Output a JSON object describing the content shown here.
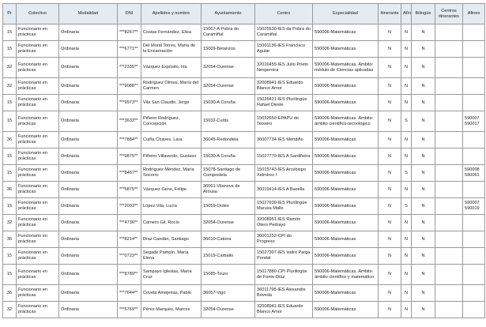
{
  "headers": [
    "Pr",
    "Colectivo",
    "Modalidad",
    "DNI",
    "Apellidos y nombre",
    "Ayuntamiento",
    "Centro",
    "Especialidad",
    "Itinerante",
    "Afín",
    "Bilingüe",
    "Centros itinerantes",
    "Afines"
  ],
  "rows": [
    [
      "15",
      "Funcionario en prácticas",
      "Ordinaria",
      "***8267**",
      "Costas Fernández, Elisa",
      "15067-A Pobra do Caramiñal",
      "15025530-IES da Pobra do Caramiñal",
      "590006-Matemáticas",
      "N",
      "N",
      "N",
      "",
      ""
    ],
    [
      "15",
      "Funcionario en prácticas",
      "Ordinaria",
      "***6771**",
      "Del Moral Torres, María de la Encarnación",
      "15009-Betanzos",
      "15001136-IES Francisco Aguiar",
      "590006-Matemáticas",
      "N",
      "N",
      "N",
      "",
      ""
    ],
    [
      "32",
      "Funcionario en prácticas",
      "Ordinaria",
      "***2335**",
      "Vázquez Expósito, Iria",
      "32054-Ourense",
      "32016455-IES Julio Prieto Nespereira",
      "590006-Matemáticas. Ámbito: módulo de Ciencias aplicadas",
      "N",
      "N",
      "N",
      "",
      ""
    ],
    [
      "32",
      "Funcionario en prácticas",
      "Ordinaria",
      "***9088**",
      "Rodríguez Olmos, María del Carmen",
      "32054-Ourense",
      "32008941-IES Eduardo Blanco Amor",
      "590006-Matemáticas",
      "N",
      "N",
      "N",
      "",
      ""
    ],
    [
      "15",
      "Funcionario en prácticas",
      "Ordinaria",
      "***9973**",
      "Vila San Claudio, Jorge",
      "15030-A Coruña",
      "15026421-IES Plurilingüe Rafael Dieste",
      "590006-Matemáticas",
      "N",
      "N",
      "N",
      "",
      ""
    ],
    [
      "15",
      "Funcionario en prácticas",
      "Ordinaria",
      "***3633**",
      "Piñeiro Rodríguez, Concepción",
      "15032-Curtis",
      "15032650-EPAPU de Teixeiro",
      "590006-Matemáticas. Ámbito: ámbito científico-tecnológico",
      "N",
      "S",
      "N",
      "",
      "590007 590017"
    ],
    [
      "36",
      "Funcionario en prácticas",
      "Ordinaria",
      "***7884**",
      "Cuiña Chaves, Lara",
      "36045-Redondela",
      "36007734-IES Mendiño",
      "590006-Matemáticas",
      "N",
      "N",
      "N",
      "",
      ""
    ],
    [
      "15",
      "Funcionario en prácticas",
      "Ordinaria",
      "***9875**",
      "Piñeiro Villaverde, Gustavo",
      "15030-A Coruña",
      "15027770-IES A Sardiñeira",
      "590006-Matemáticas",
      "N",
      "N",
      "N",
      "",
      ""
    ],
    [
      "15",
      "Funcionario en prácticas",
      "Ordinaria",
      "***8467**",
      "Rodríguez Méndez, María Socorro",
      "15078-Santiago de Compostela",
      "15015743-IES Arcebispo Xelmírez I",
      "590006-Matemáticas",
      "N",
      "S",
      "N",
      "",
      "590008 590061"
    ],
    [
      "36",
      "Funcionario en prácticas",
      "Ordinaria",
      "***5875**",
      "Vázquez Gens, Felipe",
      "36061-Vilanova de Arousa",
      "36019414-IES A Basella",
      "590006-Matemáticas",
      "N",
      "N",
      "N",
      "",
      ""
    ],
    [
      "15",
      "Funcionario en prácticas",
      "Ordinaria",
      "***2093**",
      "López Vila, Lucía",
      "15059-Ordes",
      "15027939-IES Plurilingüe Maruxa Mallo",
      "590006-Matemáticas",
      "N",
      "S",
      "N",
      "",
      "590007 590019"
    ],
    [
      "32",
      "Funcionario en prácticas",
      "Ordinaria",
      "***4736**",
      "Camero Gil, Rocío",
      "32054-Ourense",
      "32008951-IES Ramón Otero Pedrayo",
      "590006-Matemáticas",
      "N",
      "N",
      "N",
      "",
      ""
    ],
    [
      "36",
      "Funcionario en prácticas",
      "Ordinaria",
      "***8214**",
      "Díaz Candán, Santiago",
      "36010-Catoira",
      "36001252-CPI do Progreso",
      "590006-Matemáticas",
      "N",
      "N",
      "N",
      "",
      ""
    ],
    [
      "15",
      "Funcionario en prácticas",
      "Ordinaria",
      "***0723**",
      "Segade Pampín, María Elena",
      "15019-Carballo",
      "15027307-IES Isidro Parga Pondal",
      "590006-Matemáticas",
      "N",
      "N",
      "N",
      "",
      ""
    ],
    [
      "15",
      "Funcionario en prácticas",
      "Ordinaria",
      "***8789**",
      "Sampayo Iglesias, María Cruz",
      "15085-Touro",
      "15017880-CPI Plurilingüe de Fonte-Díaz",
      "590006-Matemáticas. Ámbito: ámbito científico y matemático",
      "N",
      "N",
      "N",
      "",
      ""
    ],
    [
      "36",
      "Funcionario en prácticas",
      "Ordinaria",
      "***7644**",
      "Covela Amejeiras, Pablo",
      "36057-Vigo",
      "36011798-IES Alexandre Bóveda",
      "590006-Matemáticas",
      "N",
      "N",
      "N",
      "",
      ""
    ],
    [
      "32",
      "Funcionario en prácticas",
      "Ordinaria",
      "***5769**",
      "Pérez Marqués, Marcos",
      "32054-Ourense",
      "32008941-IES Eduardo Blanco Amor",
      "590006-Matemáticas",
      "N",
      "N",
      "N",
      "",
      ""
    ]
  ]
}
